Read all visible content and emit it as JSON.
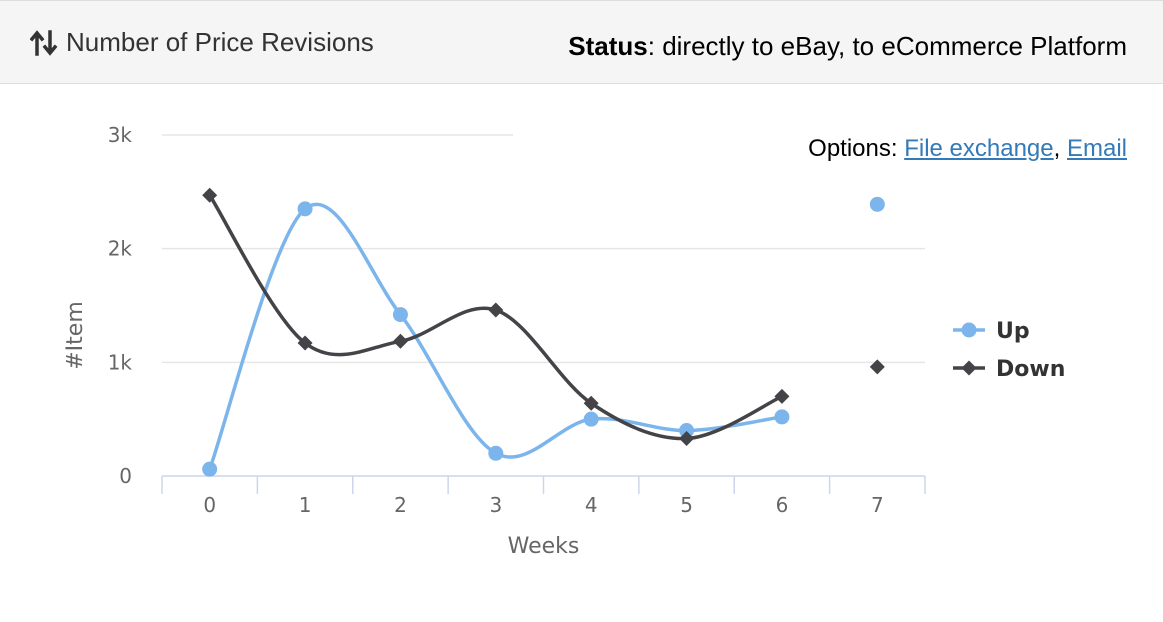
{
  "header": {
    "title": "Number of Price Revisions",
    "status_label": "Status",
    "status_text": ": directly to eBay, to eCommerce Platform"
  },
  "options": {
    "label": "Options: ",
    "links": [
      "File exchange",
      "Email"
    ],
    "separator": ", "
  },
  "colors": {
    "up": "#7cb5ec",
    "down": "#434348",
    "grid": "#e6e6e6",
    "axis": "#ccd6eb"
  },
  "chart_data": {
    "type": "line",
    "smooth": true,
    "x": [
      0,
      1,
      2,
      3,
      4,
      5,
      6,
      7
    ],
    "xlabel": "Weeks",
    "ylabel": "#Item",
    "ylim": [
      0,
      3000
    ],
    "yticks": [
      0,
      1000,
      2000,
      3000
    ],
    "ytick_labels": [
      "0",
      "1k",
      "2k",
      "3k"
    ],
    "legend": "right",
    "grid": true,
    "series": [
      {
        "name": "Up",
        "marker": "circle",
        "values": [
          60,
          2350,
          1420,
          200,
          500,
          400,
          520,
          2390
        ]
      },
      {
        "name": "Down",
        "marker": "diamond",
        "values": [
          2470,
          1170,
          1185,
          1460,
          640,
          330,
          700,
          960
        ]
      }
    ]
  }
}
